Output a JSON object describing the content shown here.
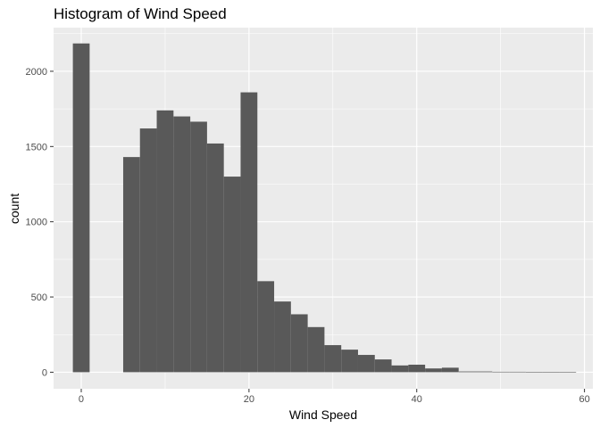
{
  "chart_data": {
    "type": "bar",
    "title": "Histogram of Wind Speed",
    "xlabel": "Wind Speed",
    "ylabel": "count",
    "xlim": [
      -3.3,
      61.0
    ],
    "ylim": [
      -110,
      2290
    ],
    "x_ticks": [
      0,
      20,
      40,
      60
    ],
    "y_ticks": [
      0,
      500,
      1000,
      1500,
      2000
    ],
    "bin_width": 2,
    "bins": [
      {
        "x0": -1,
        "x1": 1,
        "count": 2185
      },
      {
        "x0": 1,
        "x1": 3,
        "count": 0
      },
      {
        "x0": 3,
        "x1": 5,
        "count": 0
      },
      {
        "x0": 5,
        "x1": 7,
        "count": 1430
      },
      {
        "x0": 7,
        "x1": 9,
        "count": 1620
      },
      {
        "x0": 9,
        "x1": 11,
        "count": 1740
      },
      {
        "x0": 11,
        "x1": 13,
        "count": 1700
      },
      {
        "x0": 13,
        "x1": 15,
        "count": 1665
      },
      {
        "x0": 15,
        "x1": 17,
        "count": 1520
      },
      {
        "x0": 17,
        "x1": 19,
        "count": 1300
      },
      {
        "x0": 19,
        "x1": 21,
        "count": 1860
      },
      {
        "x0": 21,
        "x1": 23,
        "count": 605
      },
      {
        "x0": 23,
        "x1": 25,
        "count": 470
      },
      {
        "x0": 25,
        "x1": 27,
        "count": 385
      },
      {
        "x0": 27,
        "x1": 29,
        "count": 300
      },
      {
        "x0": 29,
        "x1": 31,
        "count": 180
      },
      {
        "x0": 31,
        "x1": 33,
        "count": 150
      },
      {
        "x0": 33,
        "x1": 35,
        "count": 115
      },
      {
        "x0": 35,
        "x1": 37,
        "count": 85
      },
      {
        "x0": 37,
        "x1": 39,
        "count": 45
      },
      {
        "x0": 39,
        "x1": 41,
        "count": 50
      },
      {
        "x0": 41,
        "x1": 43,
        "count": 25
      },
      {
        "x0": 43,
        "x1": 45,
        "count": 30
      },
      {
        "x0": 45,
        "x1": 47,
        "count": 5
      },
      {
        "x0": 47,
        "x1": 49,
        "count": 5
      },
      {
        "x0": 49,
        "x1": 51,
        "count": 3
      },
      {
        "x0": 51,
        "x1": 53,
        "count": 3
      },
      {
        "x0": 53,
        "x1": 55,
        "count": 2
      },
      {
        "x0": 55,
        "x1": 57,
        "count": 2
      },
      {
        "x0": 57,
        "x1": 59,
        "count": 1
      }
    ],
    "grid": true,
    "colors": {
      "panel": "#ebebeb",
      "grid_major": "#ffffff",
      "bar": "#595959",
      "tick_text": "#4d4d4d",
      "axis_title": "#000000"
    }
  }
}
